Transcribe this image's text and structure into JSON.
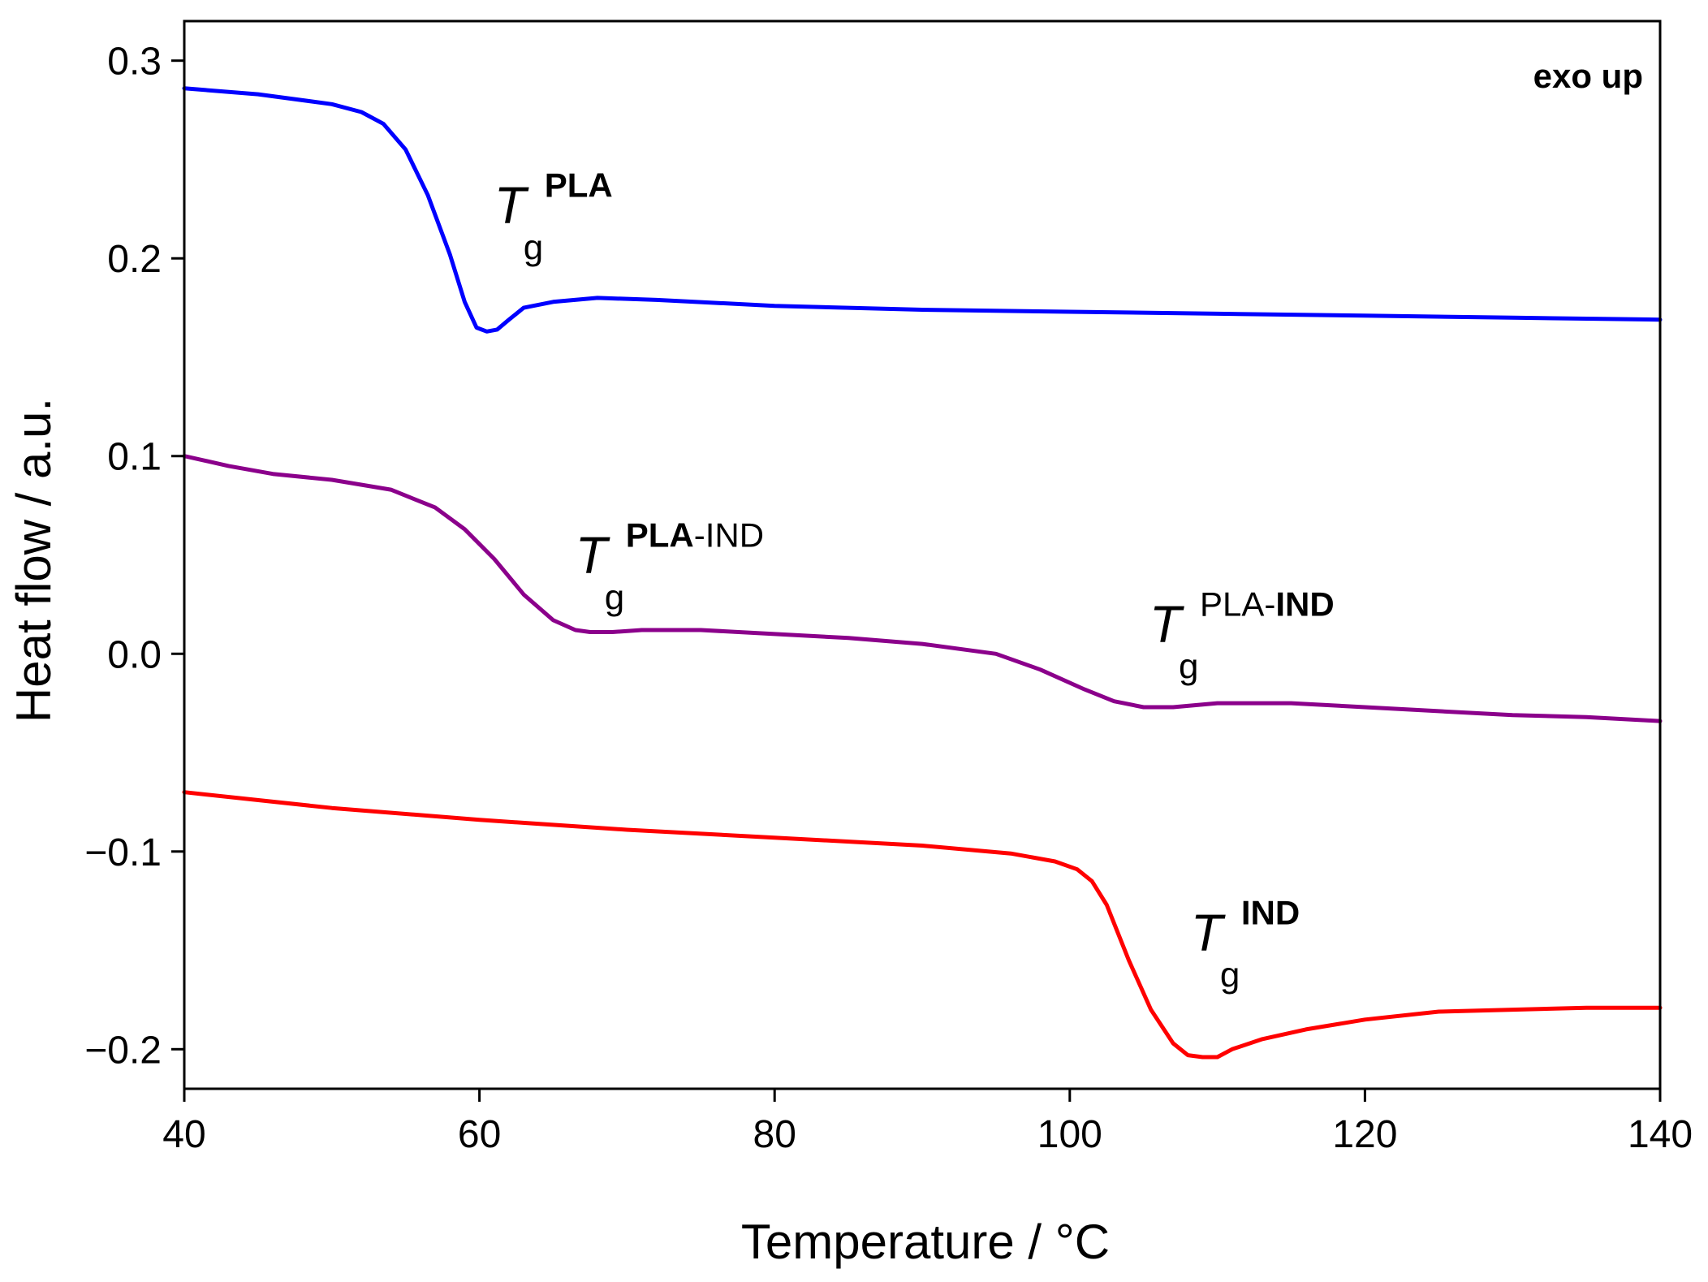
{
  "chart_data": {
    "type": "line",
    "title": "",
    "xlabel": "Temperature / °C",
    "ylabel": "Heat flow / a.u.",
    "xlim": [
      40,
      140
    ],
    "ylim": [
      -0.22,
      0.32
    ],
    "xticks": [
      40,
      60,
      80,
      100,
      120,
      140
    ],
    "xtick_labels": [
      "40",
      "60",
      "80",
      "100",
      "120",
      "140"
    ],
    "yticks": [
      0.3,
      0.2,
      0.1,
      0.0,
      -0.1,
      -0.2
    ],
    "ytick_labels": [
      "0.3",
      "0.2",
      "0.1",
      "0.0",
      "−0.1",
      "−0.2"
    ],
    "grid": false,
    "series": [
      {
        "name": "PLA",
        "color": "#0000ff",
        "x": [
          40,
          45,
          50,
          52,
          53.5,
          55,
          56.5,
          58,
          59,
          59.8,
          60.5,
          61.2,
          62,
          63,
          65,
          68,
          72,
          80,
          90,
          100,
          110,
          120,
          130,
          140
        ],
        "y": [
          0.286,
          0.283,
          0.278,
          0.274,
          0.268,
          0.255,
          0.232,
          0.202,
          0.178,
          0.165,
          0.163,
          0.164,
          0.169,
          0.175,
          0.178,
          0.18,
          0.179,
          0.176,
          0.174,
          0.173,
          0.172,
          0.171,
          0.17,
          0.169
        ]
      },
      {
        "name": "PLA-IND",
        "color": "#8b008b",
        "x": [
          40,
          43,
          46,
          50,
          54,
          57,
          59,
          61,
          63,
          65,
          66.5,
          67.5,
          69,
          71,
          75,
          80,
          85,
          90,
          95,
          98,
          101,
          103,
          105,
          107,
          110,
          115,
          120,
          125,
          130,
          135,
          140
        ],
        "y": [
          0.1,
          0.095,
          0.091,
          0.088,
          0.083,
          0.074,
          0.063,
          0.048,
          0.03,
          0.017,
          0.012,
          0.011,
          0.011,
          0.012,
          0.012,
          0.01,
          0.008,
          0.005,
          0.0,
          -0.008,
          -0.018,
          -0.024,
          -0.027,
          -0.027,
          -0.025,
          -0.025,
          -0.027,
          -0.029,
          -0.031,
          -0.032,
          -0.034
        ]
      },
      {
        "name": "IND",
        "color": "#ff0000",
        "x": [
          40,
          50,
          60,
          70,
          80,
          90,
          96,
          99,
          100.5,
          101.5,
          102.5,
          104,
          105.5,
          107,
          108,
          109,
          110,
          111,
          113,
          116,
          120,
          125,
          130,
          135,
          140
        ],
        "y": [
          -0.07,
          -0.078,
          -0.084,
          -0.089,
          -0.093,
          -0.097,
          -0.101,
          -0.105,
          -0.109,
          -0.115,
          -0.127,
          -0.155,
          -0.18,
          -0.197,
          -0.203,
          -0.204,
          -0.204,
          -0.2,
          -0.195,
          -0.19,
          -0.185,
          -0.181,
          -0.18,
          -0.179,
          -0.179
        ]
      }
    ],
    "annotations": [
      {
        "name": "tg-pla",
        "T": "T",
        "sub": "g",
        "x": 61,
        "y": 0.218,
        "sup_parts": [
          {
            "text": "PLA",
            "bold": true
          }
        ]
      },
      {
        "name": "tg-pla-ind-first",
        "T": "T",
        "sub": "g",
        "x": 66.5,
        "y": 0.041,
        "sup_parts": [
          {
            "text": "PLA",
            "bold": true
          },
          {
            "text": "-IND",
            "bold": false
          }
        ]
      },
      {
        "name": "tg-pla-ind-second",
        "T": "T",
        "sub": "g",
        "x": 105.4,
        "y": 0.006,
        "sup_parts": [
          {
            "text": "PLA-",
            "bold": false
          },
          {
            "text": "IND",
            "bold": true
          }
        ]
      },
      {
        "name": "tg-ind",
        "T": "T",
        "sub": "g",
        "x": 108.2,
        "y": -0.15,
        "sup_parts": [
          {
            "text": "IND",
            "bold": true
          }
        ]
      }
    ],
    "corner_label": "exo up",
    "corner_label_placement": "top-right"
  }
}
